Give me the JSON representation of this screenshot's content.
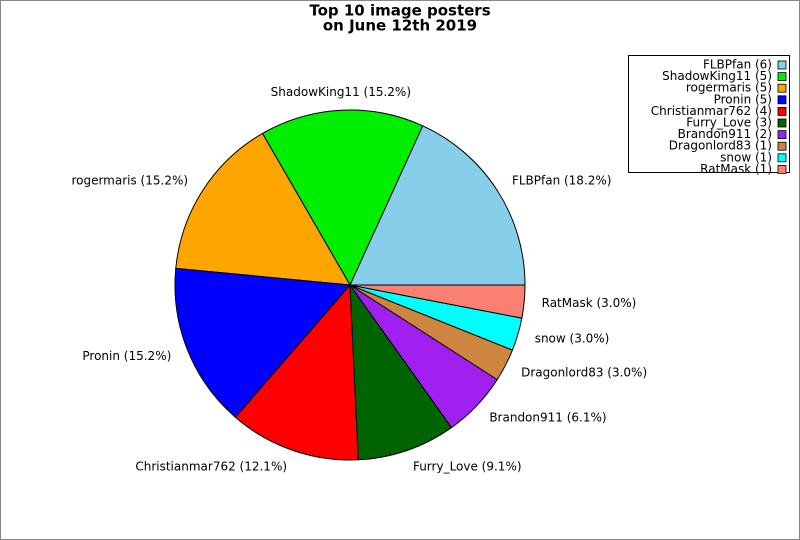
{
  "chart_data": {
    "type": "pie",
    "title": [
      "Top 10 image posters",
      "on June 12th 2019"
    ],
    "categories": [
      "FLBPfan",
      "ShadowKing11",
      "rogermaris",
      "Pronin",
      "Christianmar762",
      "Furry_Love",
      "Brandon911",
      "Dragonlord83",
      "snow",
      "RatMask"
    ],
    "values": [
      6,
      5,
      5,
      5,
      4,
      3,
      2,
      1,
      1,
      1
    ],
    "value_labels": [
      "FLBPfan (6)",
      "ShadowKing11 (5)",
      "rogermaris (5)",
      "Pronin (5)",
      "Christianmar762 (4)",
      "Furry_Love (3)",
      "Brandon911 (2)",
      "Dragonlord83 (1)",
      "snow (1)",
      "RatMask (1)"
    ],
    "percent_labels": [
      "FLBPfan (18.2%)",
      "ShadowKing11 (15.2%)",
      "rogermaris (15.2%)",
      "Pronin (15.2%)",
      "Christianmar762 (12.1%)",
      "Furry_Love (9.1%)",
      "Brandon911 (6.1%)",
      "Dragonlord83 (3.0%)",
      "snow (3.0%)",
      "RatMask (3.0%)"
    ],
    "colors": [
      "#87ceeb",
      "#00ee00",
      "#ffa500",
      "#0000ff",
      "#ff0000",
      "#006400",
      "#a020f0",
      "#cd853f",
      "#00ffff",
      "#fa8072"
    ],
    "legend": "upper right"
  }
}
